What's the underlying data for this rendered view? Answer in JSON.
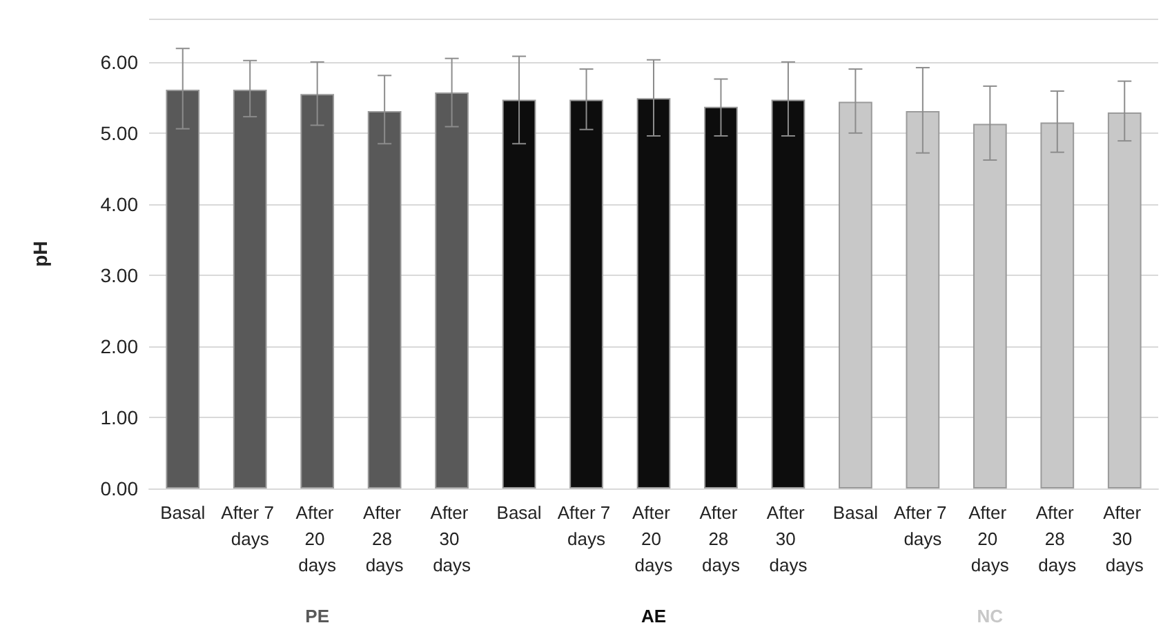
{
  "chart_data": {
    "type": "bar",
    "ylabel": "pH",
    "categories": [
      "Basal",
      "After 7 days",
      "After 20 days",
      "After 28 days",
      "After 30 days",
      "Basal",
      "After 7 days",
      "After 20 days",
      "After 28 days",
      "After 30 days",
      "Basal",
      "After 7 days",
      "After 20 days",
      "After 28 days",
      "After 30 days"
    ],
    "series": [
      {
        "name": "PE",
        "color": "#595959",
        "values": [
          5.61,
          5.61,
          5.55,
          5.31,
          5.57,
          null,
          null,
          null,
          null,
          null,
          null,
          null,
          null,
          null,
          null
        ],
        "errors": [
          [
            5.06,
            6.19
          ],
          [
            5.23,
            6.02
          ],
          [
            5.11,
            6.0
          ],
          [
            4.85,
            5.81
          ],
          [
            5.09,
            6.05
          ],
          null,
          null,
          null,
          null,
          null,
          null,
          null,
          null,
          null,
          null
        ]
      },
      {
        "name": "AE",
        "color": "#0d0d0d",
        "values": [
          null,
          null,
          null,
          null,
          null,
          5.47,
          5.47,
          5.49,
          5.37,
          5.47,
          null,
          null,
          null,
          null,
          null
        ],
        "errors": [
          null,
          null,
          null,
          null,
          null,
          [
            4.85,
            6.08
          ],
          [
            5.05,
            5.9
          ],
          [
            4.96,
            6.03
          ],
          [
            4.96,
            5.76
          ],
          [
            4.96,
            6.0
          ],
          null,
          null,
          null,
          null,
          null
        ]
      },
      {
        "name": "NC",
        "color": "#c8c8c8",
        "values": [
          null,
          null,
          null,
          null,
          null,
          null,
          null,
          null,
          null,
          null,
          5.44,
          5.31,
          5.13,
          5.15,
          5.29
        ],
        "errors": [
          null,
          null,
          null,
          null,
          null,
          null,
          null,
          null,
          null,
          null,
          [
            5.0,
            5.9
          ],
          [
            4.72,
            5.92
          ],
          [
            4.62,
            5.66
          ],
          [
            4.73,
            5.59
          ],
          [
            4.89,
            5.73
          ]
        ]
      }
    ],
    "ylim": [
      0,
      6.6
    ],
    "yticks": [
      {
        "value": 0,
        "label": "0.00"
      },
      {
        "value": 1,
        "label": "1.00"
      },
      {
        "value": 2,
        "label": "2.00"
      },
      {
        "value": 3,
        "label": "3.00"
      },
      {
        "value": 4,
        "label": "4.00"
      },
      {
        "value": 5,
        "label": "5.00"
      },
      {
        "value": 6,
        "label": "6.00"
      }
    ],
    "grid": "y",
    "legend": false
  }
}
